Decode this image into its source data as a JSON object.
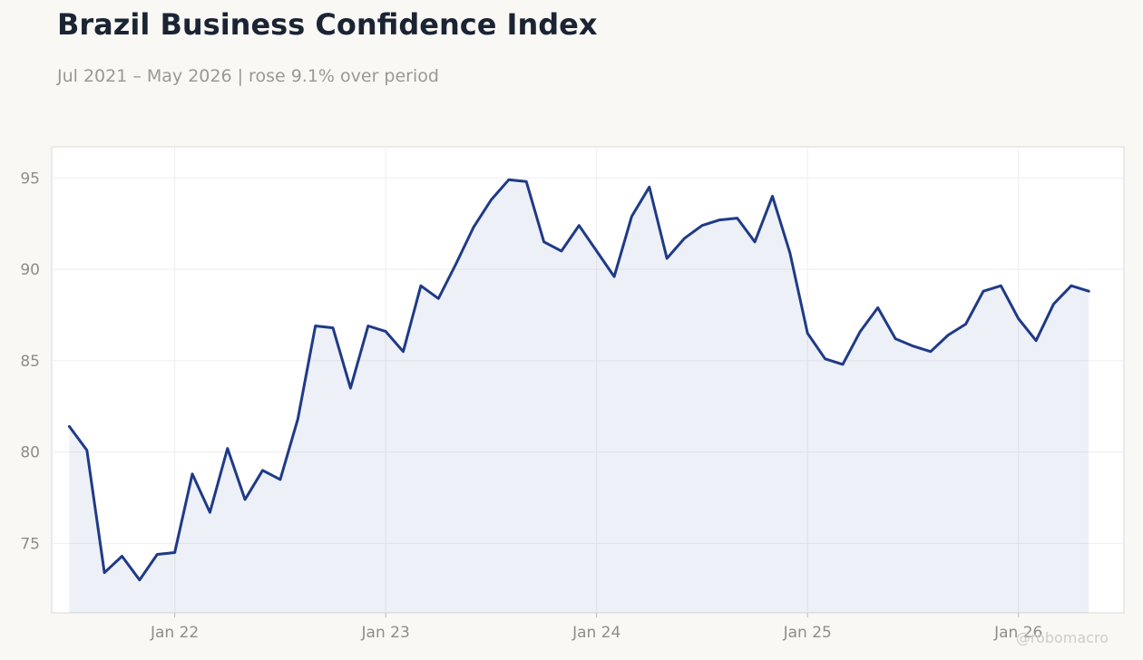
{
  "header": {
    "title": "Brazil Business Confidence Index",
    "subtitle": "Jul 2021 – May 2026 | rose 9.1% over period"
  },
  "watermark": "@robomacro",
  "colors": {
    "line": "#1f3a87",
    "area_fill": "#1f3a87",
    "background": "#f9f8f5",
    "plot_background": "#ffffff",
    "grid": "#eeeeee"
  },
  "chart_data": {
    "type": "area",
    "title": "Brazil Business Confidence Index",
    "subtitle": "Jul 2021 – May 2026 | rose 9.1% over period",
    "xlabel": "",
    "ylabel": "",
    "xlim": [
      "2021-06",
      "2026-07"
    ],
    "ylim": [
      71.2,
      96.7
    ],
    "x_ticks": [
      {
        "date": "2022-01",
        "label": "Jan 22"
      },
      {
        "date": "2023-01",
        "label": "Jan 23"
      },
      {
        "date": "2024-01",
        "label": "Jan 24"
      },
      {
        "date": "2025-01",
        "label": "Jan 25"
      },
      {
        "date": "2026-01",
        "label": "Jan 26"
      }
    ],
    "y_ticks": [
      75,
      80,
      85,
      90,
      95
    ],
    "grid": true,
    "legend": "none",
    "series": [
      {
        "x": [
          "2021-07",
          "2021-08",
          "2021-09",
          "2021-10",
          "2021-11",
          "2021-12",
          "2022-01",
          "2022-02",
          "2022-03",
          "2022-04",
          "2022-05",
          "2022-06",
          "2022-07",
          "2022-08",
          "2022-09",
          "2022-10",
          "2022-11",
          "2022-12",
          "2023-01",
          "2023-02",
          "2023-03",
          "2023-04",
          "2023-05",
          "2023-06",
          "2023-07",
          "2023-08",
          "2023-09",
          "2023-10",
          "2023-11",
          "2023-12",
          "2024-01",
          "2024-02",
          "2024-03",
          "2024-04",
          "2024-05",
          "2024-06",
          "2024-07",
          "2024-08",
          "2024-09",
          "2024-10",
          "2024-11",
          "2024-12",
          "2025-01",
          "2025-02",
          "2025-03",
          "2025-04",
          "2025-05",
          "2025-06",
          "2025-07",
          "2025-08",
          "2025-09",
          "2025-10",
          "2025-11",
          "2025-12",
          "2026-01",
          "2026-02",
          "2026-03",
          "2026-04",
          "2026-05"
        ],
        "values": [
          81.4,
          80.1,
          73.4,
          74.3,
          73.0,
          74.4,
          74.5,
          78.8,
          76.7,
          80.2,
          77.4,
          79.0,
          78.5,
          81.8,
          86.9,
          86.8,
          83.5,
          86.9,
          86.6,
          85.5,
          89.1,
          88.4,
          90.3,
          92.3,
          93.8,
          94.9,
          94.8,
          91.5,
          91.0,
          92.4,
          91.0,
          89.6,
          92.9,
          94.5,
          90.6,
          91.7,
          92.4,
          92.7,
          92.8,
          91.5,
          94.0,
          90.9,
          86.5,
          85.1,
          84.8,
          86.6,
          87.9,
          86.2,
          85.8,
          85.5,
          86.4,
          87.0,
          88.8,
          89.1,
          87.3,
          86.1,
          88.1,
          89.1,
          88.8
        ]
      }
    ]
  }
}
